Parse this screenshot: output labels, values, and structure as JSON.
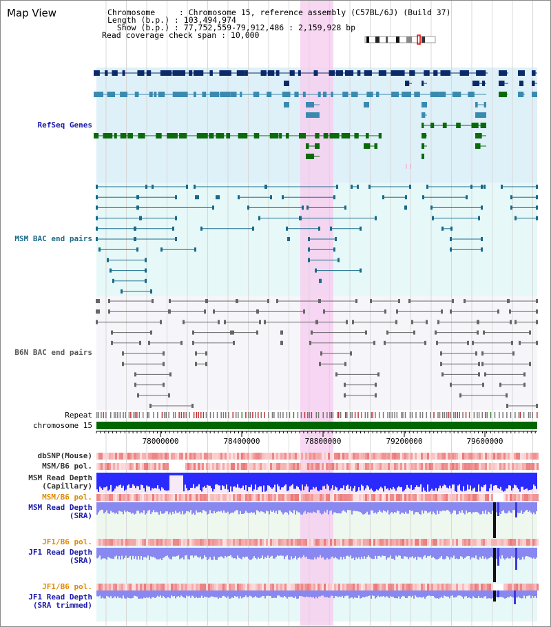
{
  "title": "Map View",
  "info": {
    "chromosome": "Chromosome     : Chromosome 15, reference assembly (C57BL/6J) (Build 37)",
    "length": "Length (b.p.) : 103,494,974",
    "show": "  Show (b.p.) : 77,752,559-79,912,486 : 2,159,928 bp",
    "span": "Read coverage check span : 10,000"
  },
  "tracks": {
    "refseq": "RefSeq Genes",
    "msm_bac": "MSM BAC end pairs",
    "b6n_bac": "B6N BAC end pairs",
    "repeat": "Repeat",
    "chromosome": "chromosome 15",
    "dbsnp": "dbSNP(Mouse)",
    "msm_pol_1": "MSM/B6 pol.",
    "msm_depth_cap": "MSM Read Depth\n(Capillary)",
    "msm_pol_2": "MSM/B6 pol.",
    "msm_depth_sra": "MSM Read Depth\n(SRA)",
    "jf1_pol_1": "JF1/B6 pol.",
    "jf1_depth_sra": "JF1 Read Depth\n(SRA)",
    "jf1_pol_2": "JF1/B6 pol.",
    "jf1_depth_trim": "JF1 Read Depth\n(SRA trimmed)"
  },
  "axis": {
    "ticks": [
      "78000000",
      "78400000",
      "78800000",
      "79200000",
      "79600000"
    ]
  },
  "colors": {
    "highlight": "#f6d0f0",
    "refseq_bg": "#def0f8",
    "msm_bg": "#e6f8f8",
    "b6n_bg": "#f6f6fa",
    "gene_dark": "#0a2a6a",
    "gene_mid": "#3a8ab0",
    "gene_green": "#0a6a0a",
    "msm_line": "#1a6a8a",
    "b6n_line": "#666666",
    "chromosome": "#006600",
    "depth_blue": "#2a2aff",
    "depth_light": "#8888f0",
    "label_blue": "#1a1aaa",
    "label_teal": "#1a6a8a",
    "label_orange": "#e08a00"
  }
}
